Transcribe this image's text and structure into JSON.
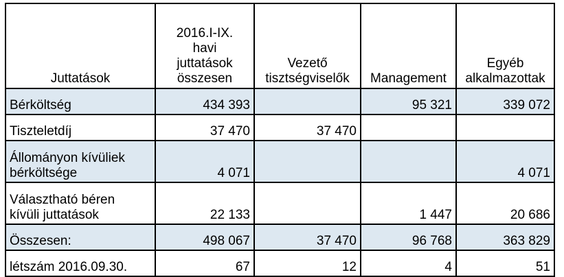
{
  "table": {
    "headers": [
      "Juttatások",
      "2016.I-IX.\nhavi\njuttatások\nösszesen",
      "Vezető\ntisztségviselők",
      "Management",
      "Egyéb\nalkalmazottak"
    ],
    "rows": [
      {
        "label": "Bérköltség",
        "total": "434 393",
        "vezeto": "",
        "management": "95 321",
        "egyeb": "339 072"
      },
      {
        "label": "Tiszteletdíj",
        "total": "37 470",
        "vezeto": "37 470",
        "management": "",
        "egyeb": ""
      },
      {
        "label": "Állományon kívüliek\nbérköltsége",
        "total": "4 071",
        "vezeto": "",
        "management": "",
        "egyeb": "4 071"
      },
      {
        "label": "Választható béren\nkívüli juttatások",
        "total": "22 133",
        "vezeto": "",
        "management": "1 447",
        "egyeb": "20 686"
      },
      {
        "label": "Összesen:",
        "total": "498 067",
        "vezeto": "37 470",
        "management": "96 768",
        "egyeb": "363 829"
      },
      {
        "label": "létszám 2016.09.30.",
        "total": "67",
        "vezeto": "12",
        "management": "4",
        "egyeb": "51"
      }
    ]
  },
  "colors": {
    "row_shade": "#dde8f1",
    "border": "#000000"
  }
}
